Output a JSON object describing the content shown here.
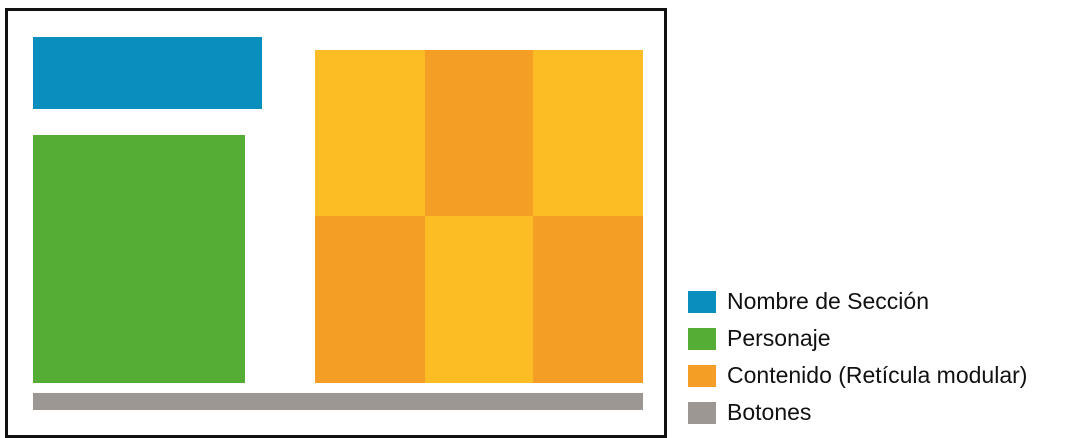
{
  "colors": {
    "section_name": "#0a8ebe",
    "character": "#55ad35",
    "content_light": "#fbbd23",
    "content_dark": "#f49e25",
    "buttons": "#9c9792",
    "frame_border": "#111111"
  },
  "grid": {
    "cells": [
      {
        "tone": "content_light"
      },
      {
        "tone": "content_dark"
      },
      {
        "tone": "content_light"
      },
      {
        "tone": "content_dark"
      },
      {
        "tone": "content_light"
      },
      {
        "tone": "content_dark"
      }
    ]
  },
  "legend": {
    "items": [
      {
        "label": "Nombre de Sección",
        "color": "#0a8ebe"
      },
      {
        "label": "Personaje",
        "color": "#55ad35"
      },
      {
        "label": "Contenido (Retícula modular)",
        "color": "#f49e25"
      },
      {
        "label": "Botones",
        "color": "#9c9792"
      }
    ]
  }
}
